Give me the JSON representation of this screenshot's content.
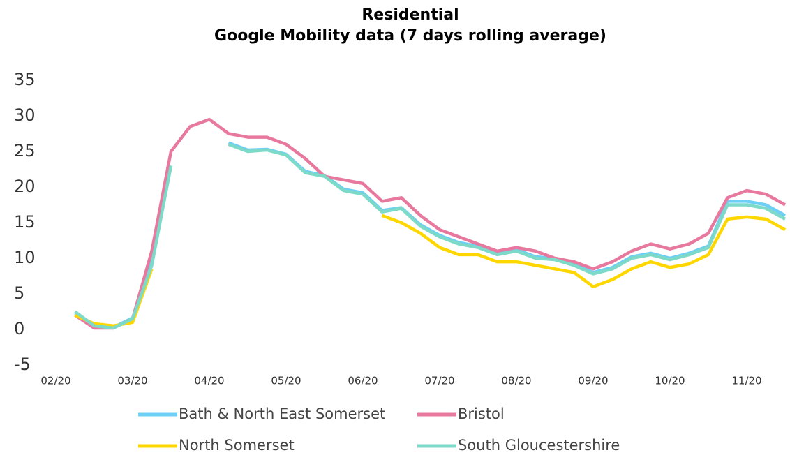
{
  "chart_data": {
    "type": "line",
    "title": "Residential",
    "subtitle": "Google Mobility data (7 days rolling average)",
    "categories": [
      "02/20",
      null,
      null,
      null,
      "03/20",
      null,
      null,
      null,
      "04/20",
      null,
      null,
      null,
      "05/20",
      null,
      null,
      null,
      "06/20",
      null,
      null,
      null,
      "07/20",
      null,
      null,
      null,
      "08/20",
      null,
      null,
      null,
      "09/20",
      null,
      null,
      null,
      "10/20",
      null,
      null,
      null,
      "11/20",
      null,
      null
    ],
    "series": [
      {
        "name": "Bath & North East Somerset",
        "color": "#6ecff6",
        "values": [
          null,
          2.3,
          0.5,
          0.3,
          1.6,
          9.5,
          23,
          null,
          null,
          26.2,
          25.2,
          25.3,
          24.6,
          22.2,
          21.6,
          19.7,
          19.2,
          16.7,
          17.1,
          14.7,
          13.2,
          12.2,
          11.7,
          10.7,
          11.2,
          10.2,
          10,
          9.2,
          8,
          8.7,
          10.2,
          10.7,
          10,
          10.7,
          11.7,
          18,
          18,
          17.5,
          16
        ]
      },
      {
        "name": "Bristol",
        "color": "#e8799e",
        "values": [
          null,
          2,
          0.2,
          0.2,
          1.5,
          11,
          25,
          28.5,
          29.5,
          27.5,
          27,
          27,
          26,
          24,
          21.5,
          21,
          20.5,
          18,
          18.5,
          16,
          14,
          13,
          12,
          11,
          11.5,
          11,
          10,
          9.5,
          8.5,
          9.5,
          11,
          12,
          11.3,
          12,
          13.5,
          18.5,
          19.5,
          19,
          17.5
        ]
      },
      {
        "name": "North Somerset",
        "color": "#ffd700",
        "values": [
          null,
          2,
          0.8,
          0.5,
          1,
          8.5,
          null,
          null,
          null,
          null,
          null,
          null,
          null,
          null,
          null,
          null,
          null,
          16,
          15,
          13.5,
          11.5,
          10.5,
          10.5,
          9.5,
          9.5,
          9,
          8.5,
          8,
          6,
          7,
          8.5,
          9.5,
          8.7,
          9.2,
          10.5,
          15.5,
          15.8,
          15.5,
          14
        ]
      },
      {
        "name": "South Gloucestershire",
        "color": "#7dd9c8",
        "values": [
          null,
          2.5,
          0.5,
          0.2,
          1.5,
          9,
          23,
          null,
          null,
          26,
          25,
          25.2,
          24.5,
          22,
          21.5,
          19.5,
          19,
          16.5,
          17,
          14.5,
          13,
          12,
          11.5,
          10.5,
          11,
          10,
          9.8,
          9,
          7.8,
          8.5,
          10,
          10.5,
          9.8,
          10.5,
          11.5,
          17.5,
          17.5,
          17,
          15.5
        ]
      }
    ],
    "ylim": [
      -5,
      35
    ],
    "yticks": [
      -5,
      0,
      5,
      10,
      15,
      20,
      25,
      30,
      35
    ]
  }
}
